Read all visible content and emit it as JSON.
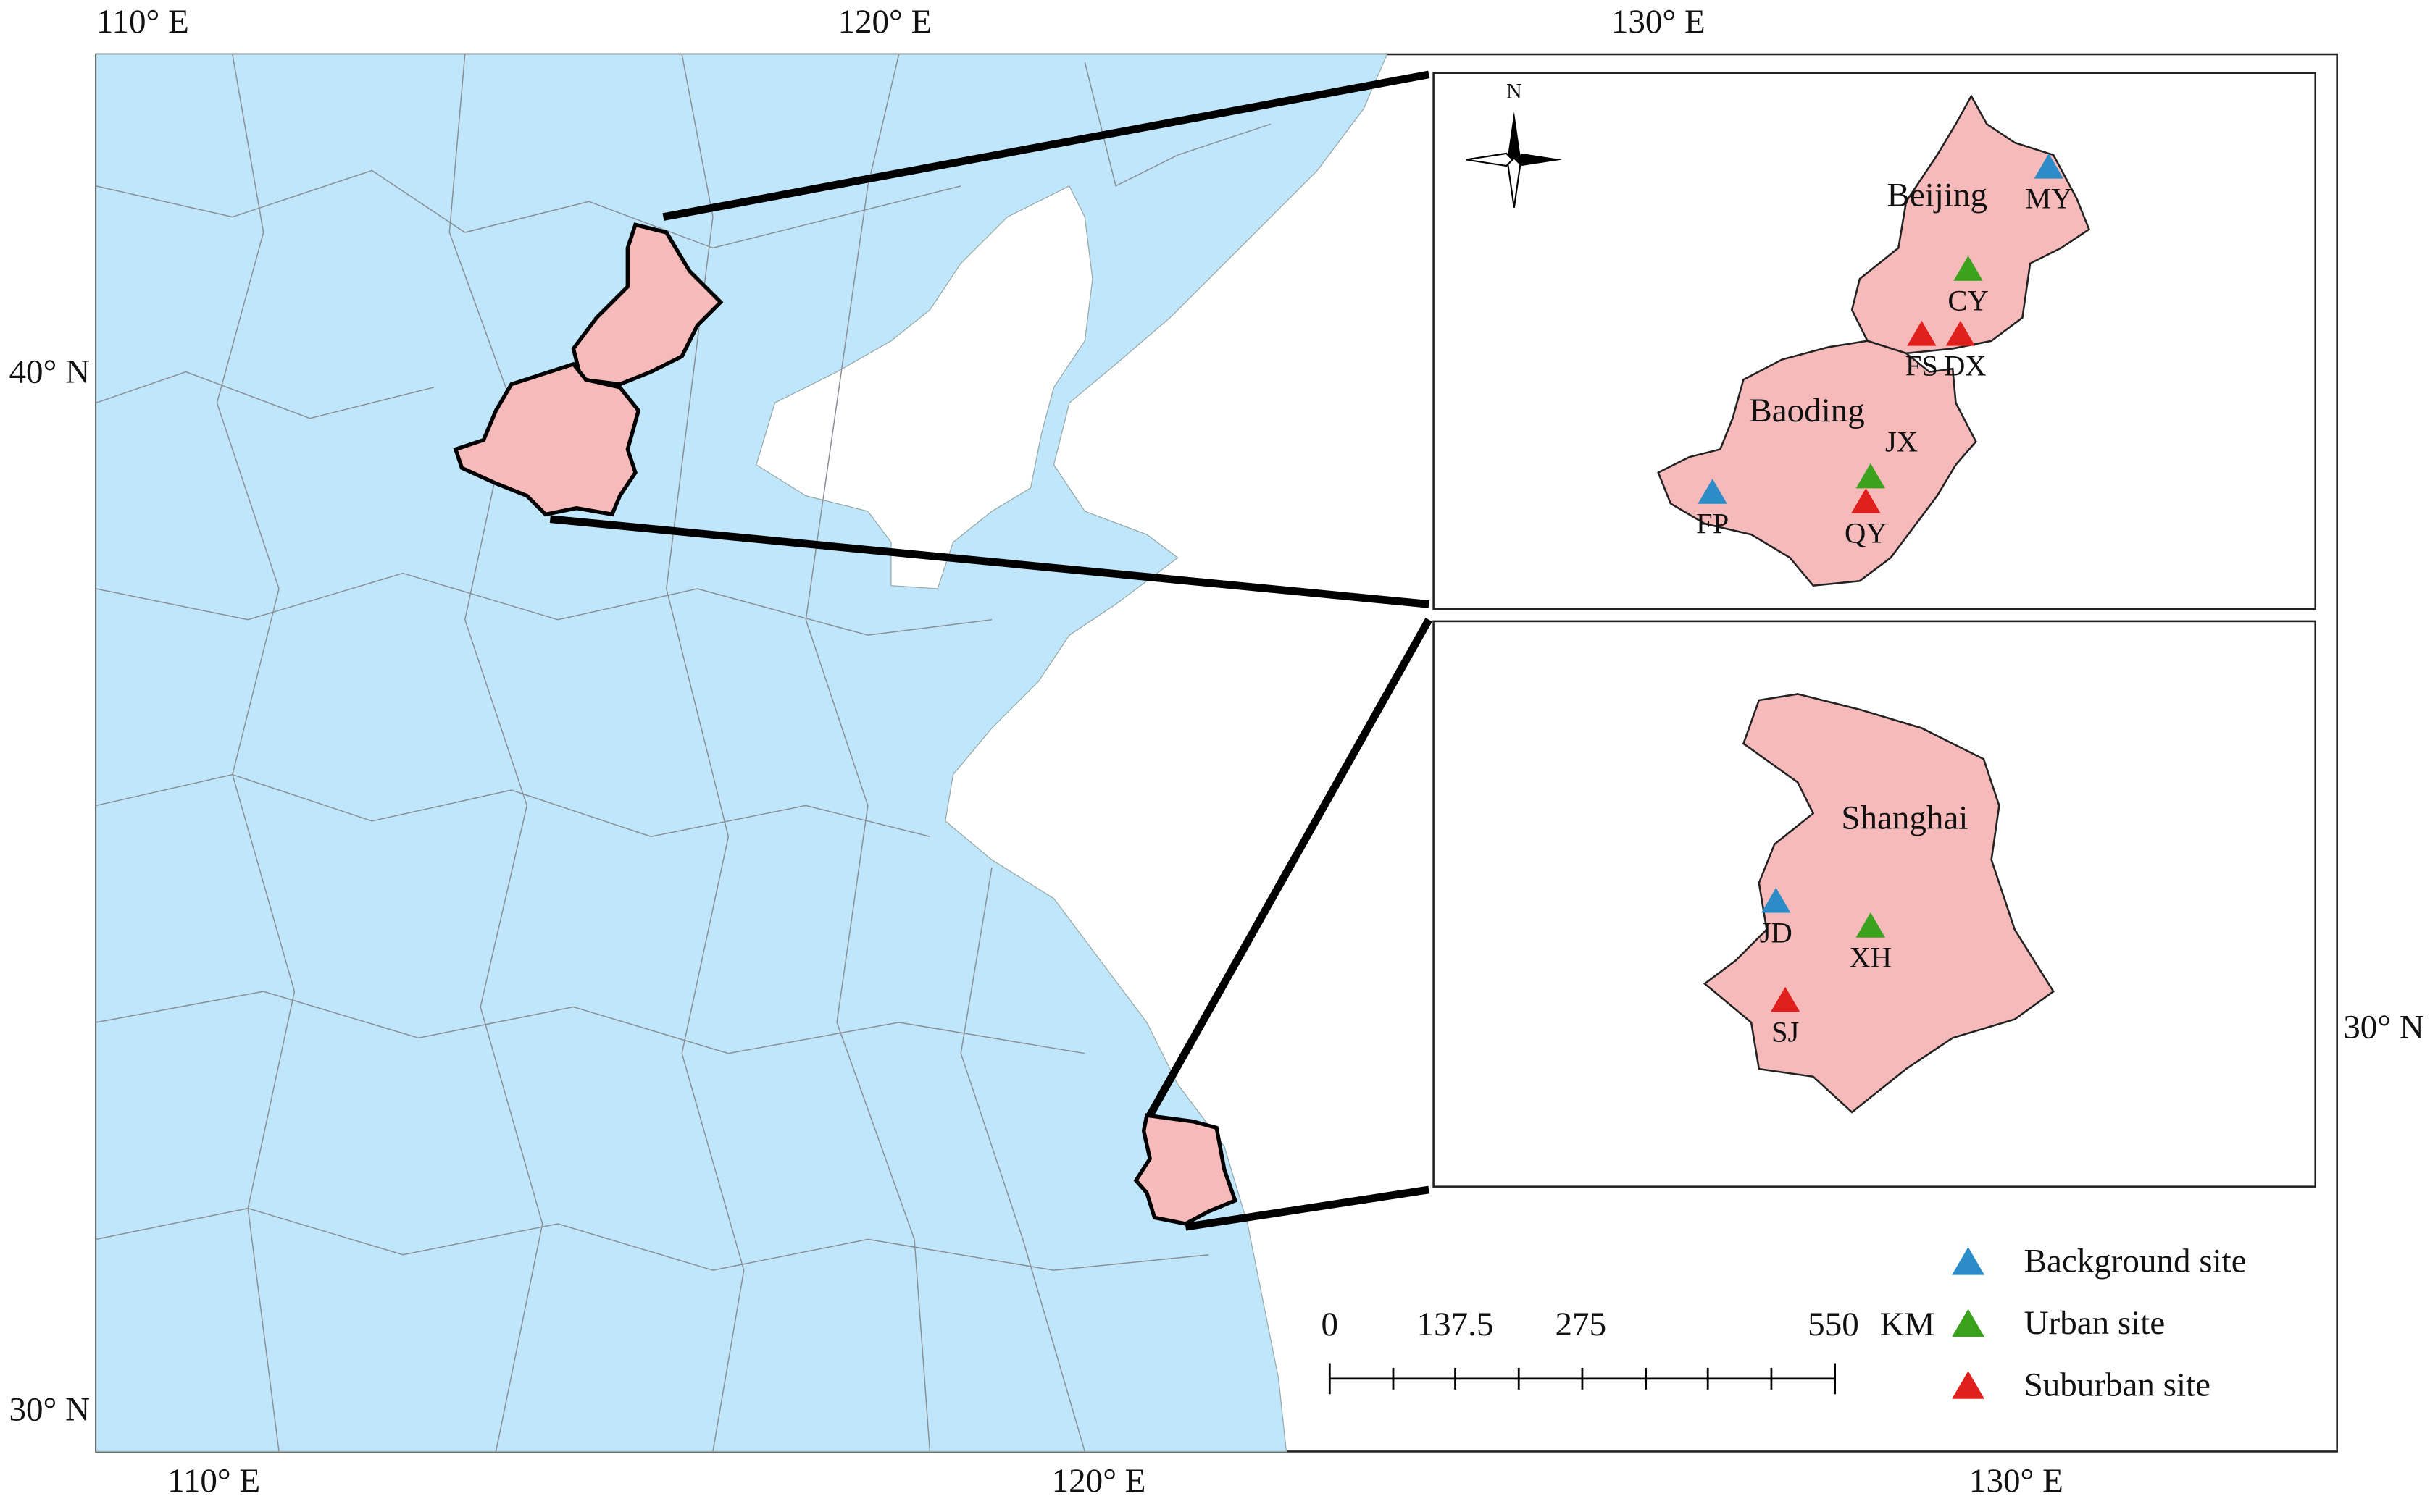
{
  "map": {
    "graticule": {
      "top": [
        "110° E",
        "120° E",
        "130° E"
      ],
      "bottom": [
        "110° E",
        "120° E",
        "130° E"
      ],
      "left": [
        "40° N",
        "30° N"
      ],
      "right": [
        "30° N"
      ]
    },
    "north": "N",
    "insets": [
      {
        "regions": [
          "Beijing",
          "Baoding"
        ],
        "sites": [
          {
            "label": "MY",
            "color": "#2b8cc8"
          },
          {
            "label": "CY",
            "color": "#3aa21c"
          },
          {
            "label": "FS",
            "color": "#e0201c"
          },
          {
            "label": "DX",
            "color": "#e0201c"
          },
          {
            "label": "JX",
            "color": "#3aa21c"
          },
          {
            "label": "FP",
            "color": "#2b8cc8"
          },
          {
            "label": "QY",
            "color": "#e0201c"
          }
        ]
      },
      {
        "regions": [
          "Shanghai"
        ],
        "sites": [
          {
            "label": "JD",
            "color": "#2b8cc8"
          },
          {
            "label": "XH",
            "color": "#3aa21c"
          },
          {
            "label": "SJ",
            "color": "#e0201c"
          }
        ]
      }
    ],
    "scale_bar": {
      "labels": [
        "0",
        "137.5",
        "275",
        "550"
      ],
      "unit": "KM"
    },
    "legend": [
      {
        "label": "Background site",
        "color": "#2b8cc8"
      },
      {
        "label": "Urban site",
        "color": "#3aa21c"
      },
      {
        "label": "Suburban site",
        "color": "#e0201c"
      }
    ]
  }
}
